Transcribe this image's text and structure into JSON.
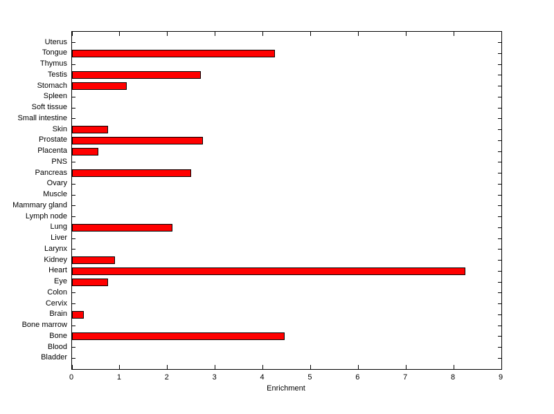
{
  "chart_data": {
    "type": "bar",
    "orientation": "horizontal",
    "title": "",
    "xlabel": "Enrichment",
    "ylabel": "",
    "xlim": [
      0,
      9
    ],
    "xticks": [
      0,
      1,
      2,
      3,
      4,
      5,
      6,
      7,
      8,
      9
    ],
    "grid": false,
    "legend": null,
    "bar_color": "#FF0000",
    "bar_edge_color": "#000000",
    "axis_color": "#000000",
    "background_color": "#FFFFFF",
    "categories": [
      "Uterus",
      "Tongue",
      "Thymus",
      "Testis",
      "Stomach",
      "Spleen",
      "Soft tissue",
      "Small intestine",
      "Skin",
      "Prostate",
      "Placenta",
      "PNS",
      "Pancreas",
      "Ovary",
      "Muscle",
      "Mammary gland",
      "Lymph node",
      "Lung",
      "Liver",
      "Larynx",
      "Kidney",
      "Heart",
      "Eye",
      "Colon",
      "Cervix",
      "Brain",
      "Bone marrow",
      "Bone",
      "Blood",
      "Bladder"
    ],
    "values": [
      0,
      4.25,
      0,
      2.7,
      1.15,
      0,
      0,
      0,
      0.75,
      2.75,
      0.55,
      0,
      2.5,
      0,
      0,
      0,
      0,
      2.1,
      0,
      0,
      0.9,
      8.25,
      0.75,
      0,
      0,
      0.25,
      0,
      4.45,
      0,
      0
    ]
  }
}
